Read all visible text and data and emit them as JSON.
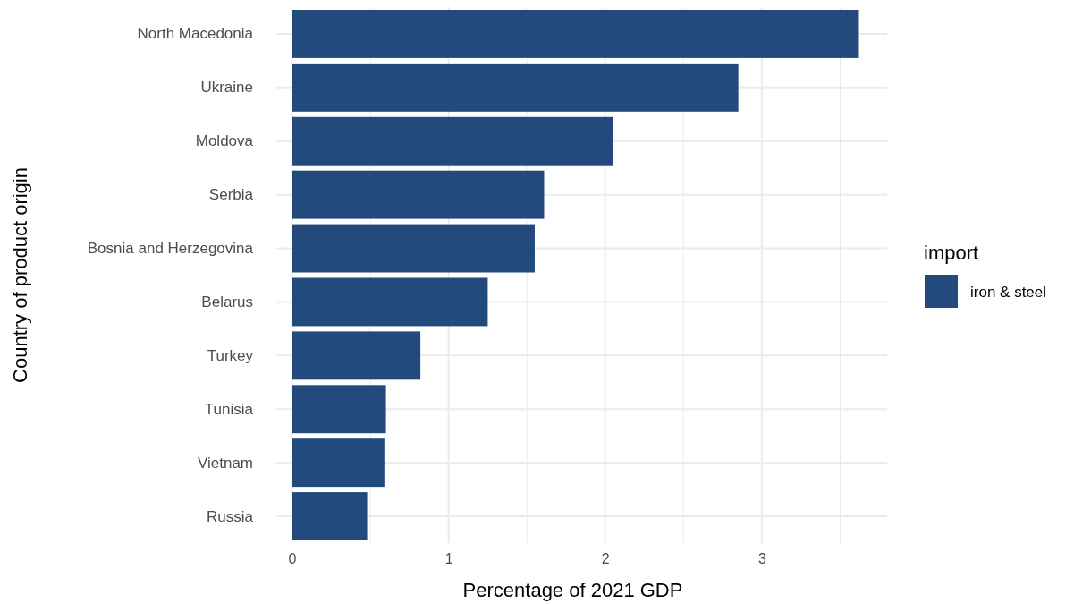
{
  "chart_data": {
    "type": "bar",
    "orientation": "horizontal",
    "xlabel": "Percentage of 2021 GDP",
    "ylabel": "Country of product origin",
    "legend_title": "import",
    "legend": "right",
    "categories": [
      "North Macedonia",
      "Ukraine",
      "Moldova",
      "Serbia",
      "Bosnia and Herzegovina",
      "Belarus",
      "Turkey",
      "Tunisia",
      "Vietnam",
      "Russia"
    ],
    "series": [
      {
        "name": "iron & steel",
        "color": "#234a7c",
        "values": [
          3.62,
          2.85,
          2.05,
          1.61,
          1.55,
          1.25,
          0.82,
          0.6,
          0.59,
          0.48
        ]
      }
    ],
    "xlim": [
      -0.1,
      3.8
    ],
    "xticks": [
      0,
      {
        "value": 0.5,
        "label": null
      },
      1,
      {
        "value": 1.5,
        "label": null
      },
      2,
      {
        "value": 2.5,
        "label": null
      },
      3,
      {
        "value": 3.5,
        "label": null
      }
    ],
    "grid": true
  }
}
